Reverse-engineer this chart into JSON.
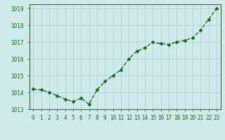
{
  "x": [
    0,
    1,
    2,
    3,
    4,
    5,
    6,
    7,
    8,
    9,
    10,
    11,
    12,
    13,
    14,
    15,
    16,
    17,
    18,
    19,
    20,
    21,
    22,
    23
  ],
  "y": [
    1014.2,
    1014.15,
    1014.0,
    1013.8,
    1013.6,
    1013.45,
    1013.65,
    1013.3,
    1014.15,
    1014.65,
    1015.0,
    1015.35,
    1016.0,
    1016.45,
    1016.65,
    1017.0,
    1016.9,
    1016.85,
    1017.0,
    1017.1,
    1017.25,
    1017.7,
    1018.35,
    1019.0
  ],
  "line_color": "#1a6b1a",
  "marker": "D",
  "marker_size": 2.0,
  "bg_color": "#ceeaea",
  "grid_color": "#aacccc",
  "ylim": [
    1013.0,
    1019.25
  ],
  "xlim": [
    -0.5,
    23.5
  ],
  "yticks": [
    1013,
    1014,
    1015,
    1016,
    1017,
    1018,
    1019
  ],
  "xtick_labels": [
    "0",
    "1",
    "2",
    "3",
    "4",
    "5",
    "6",
    "7",
    "8",
    "9",
    "10",
    "11",
    "12",
    "13",
    "14",
    "15",
    "16",
    "17",
    "18",
    "19",
    "20",
    "21",
    "22",
    "23"
  ],
  "title_fontsize": 7.0,
  "tick_fontsize": 5.5,
  "title_fontweight": "bold",
  "spine_color": "#446644",
  "linewidth": 1.0
}
